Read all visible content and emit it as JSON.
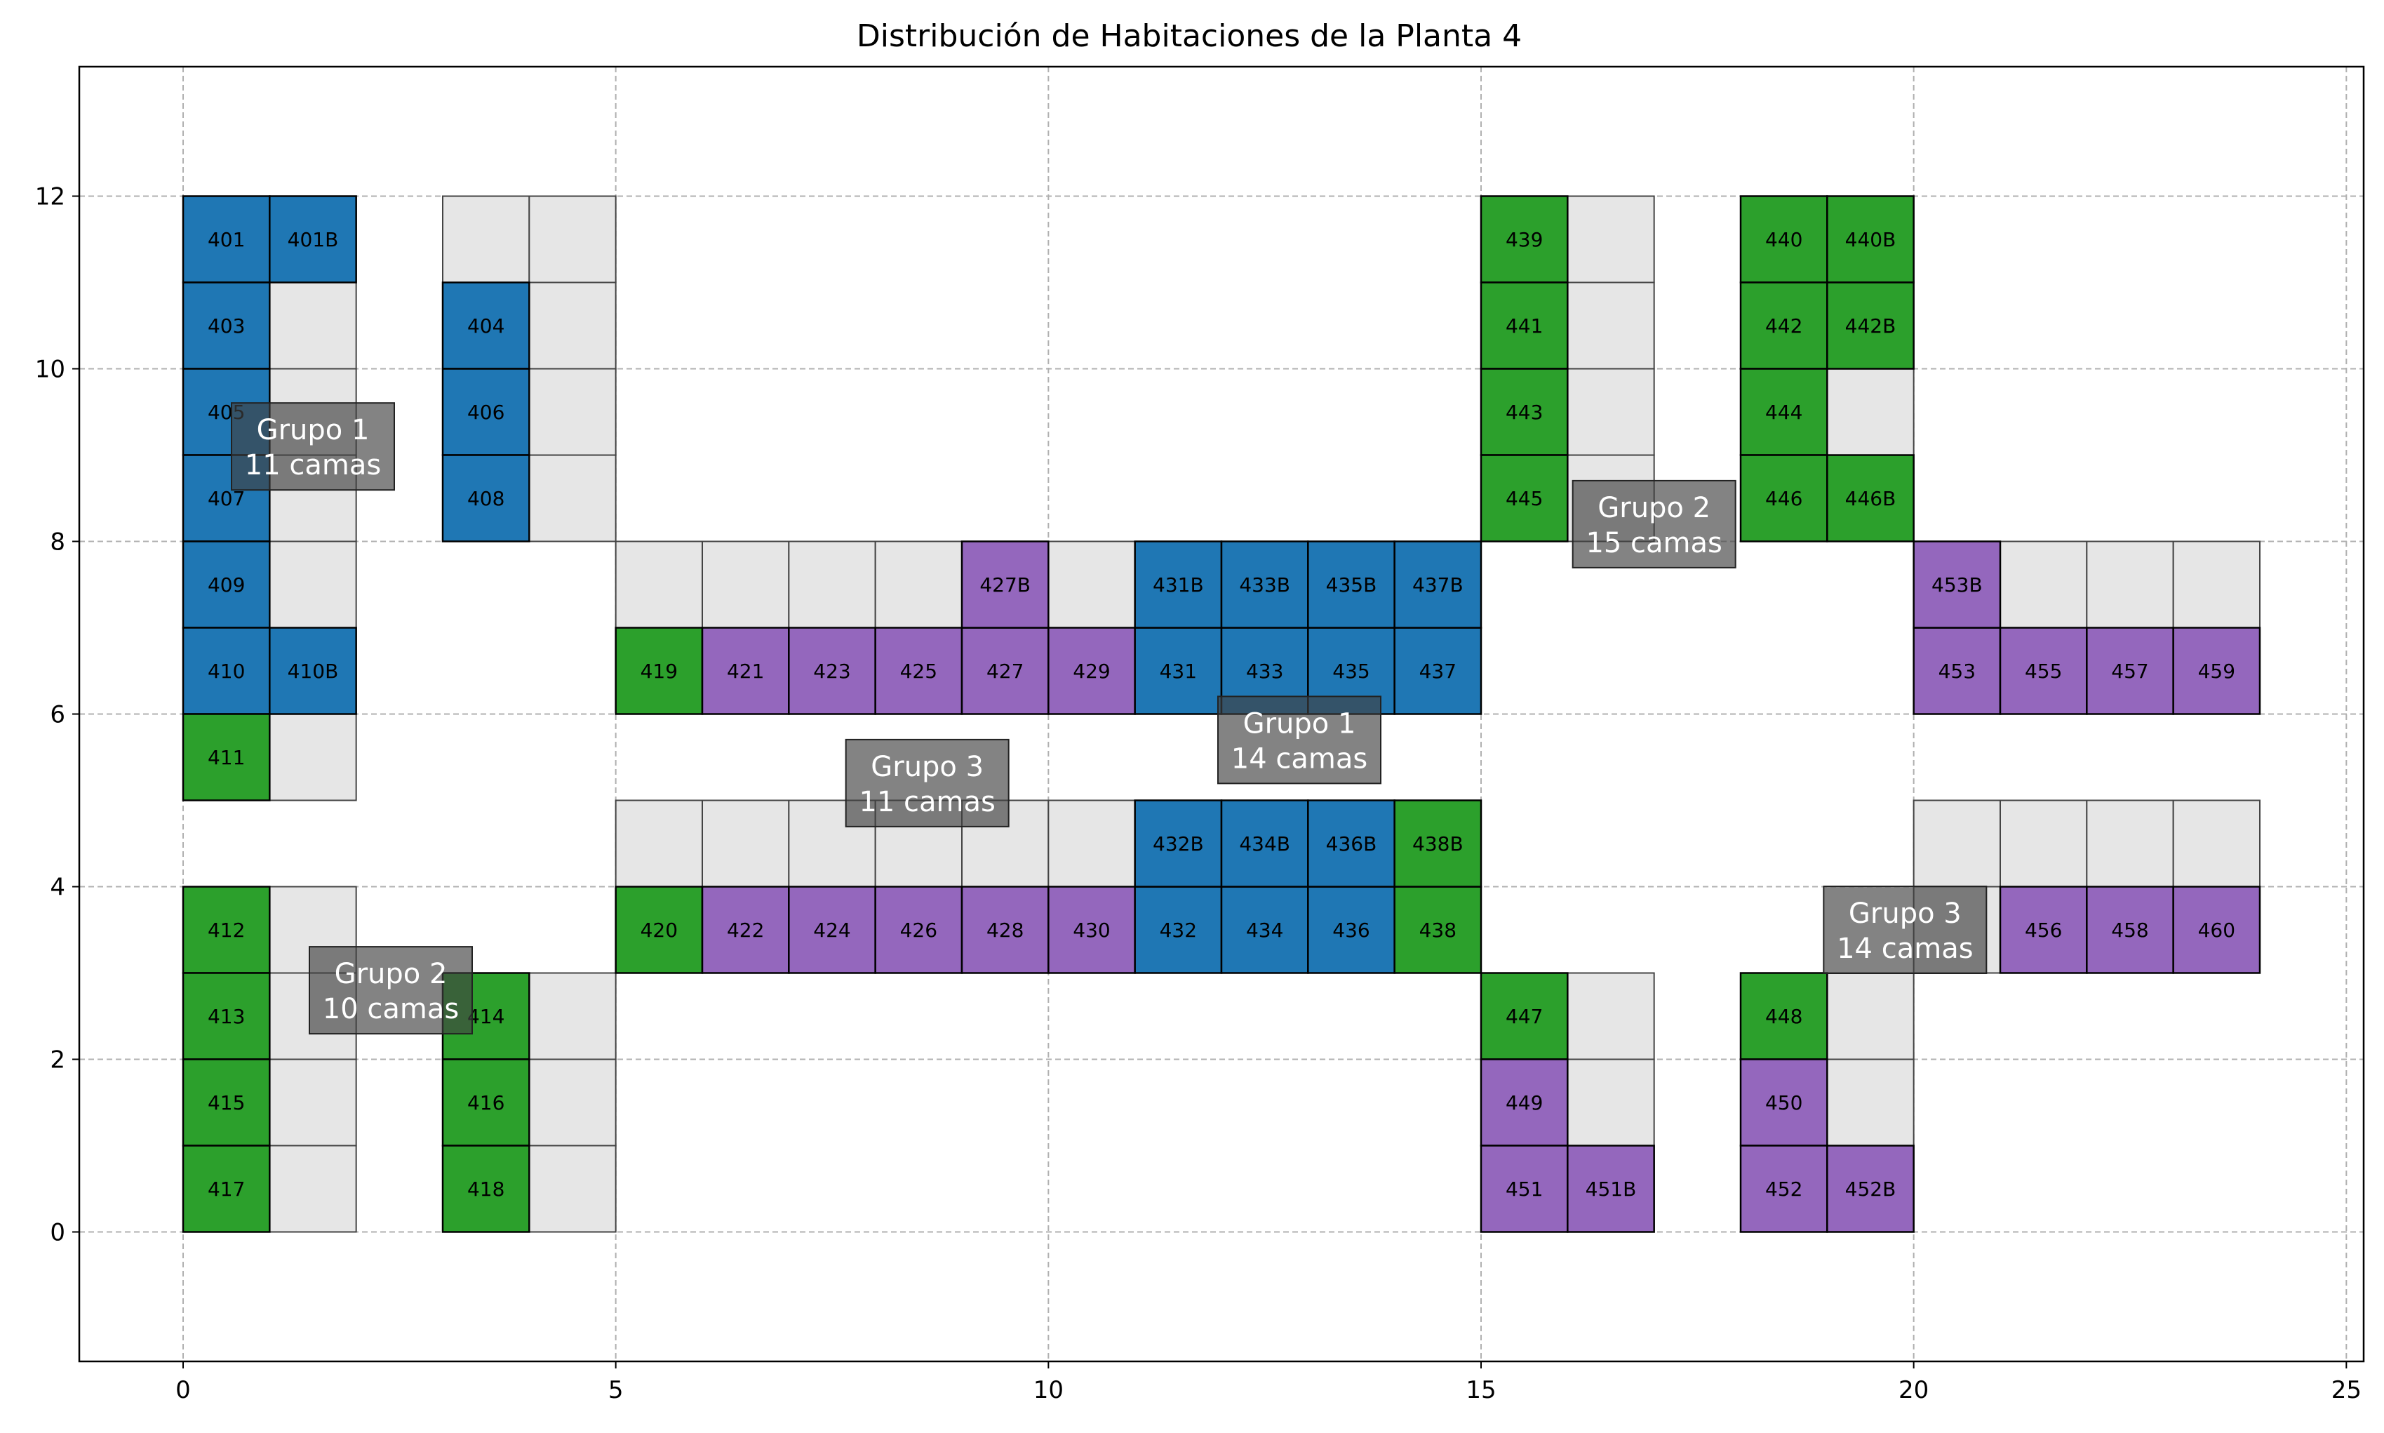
{
  "chart_data": {
    "type": "heatmap",
    "title": "Distribución de Habitaciones de la Planta 4",
    "xlabel": "",
    "ylabel": "",
    "xlim": [
      -1.2,
      25.2
    ],
    "ylim": [
      -1.5,
      13.5
    ],
    "xticks": [
      0,
      5,
      10,
      15,
      20,
      25
    ],
    "yticks": [
      0,
      2,
      4,
      6,
      8,
      10,
      12
    ],
    "grid": true,
    "colors": {
      "Grupo 1": "#1f77b4",
      "Grupo 2": "#2ca02c",
      "Grupo 3": "#9467bd",
      "empty": "#e6e6e6"
    },
    "rooms": [
      {
        "label": "401",
        "x": 0,
        "y": 11,
        "group": "Grupo 1"
      },
      {
        "label": "401B",
        "x": 1,
        "y": 11,
        "group": "Grupo 1"
      },
      {
        "label": "403",
        "x": 0,
        "y": 10,
        "group": "Grupo 1"
      },
      {
        "label": "405",
        "x": 0,
        "y": 9,
        "group": "Grupo 1"
      },
      {
        "label": "407",
        "x": 0,
        "y": 8,
        "group": "Grupo 1"
      },
      {
        "label": "409",
        "x": 0,
        "y": 7,
        "group": "Grupo 1"
      },
      {
        "label": "410",
        "x": 0,
        "y": 6,
        "group": "Grupo 1"
      },
      {
        "label": "410B",
        "x": 1,
        "y": 6,
        "group": "Grupo 1"
      },
      {
        "label": "404",
        "x": 3,
        "y": 10,
        "group": "Grupo 1"
      },
      {
        "label": "406",
        "x": 3,
        "y": 9,
        "group": "Grupo 1"
      },
      {
        "label": "408",
        "x": 3,
        "y": 8,
        "group": "Grupo 1"
      },
      {
        "label": "411",
        "x": 0,
        "y": 5,
        "group": "Grupo 2"
      },
      {
        "label": "412",
        "x": 0,
        "y": 3,
        "group": "Grupo 2"
      },
      {
        "label": "413",
        "x": 0,
        "y": 2,
        "group": "Grupo 2"
      },
      {
        "label": "415",
        "x": 0,
        "y": 1,
        "group": "Grupo 2"
      },
      {
        "label": "417",
        "x": 0,
        "y": 0,
        "group": "Grupo 2"
      },
      {
        "label": "414",
        "x": 3,
        "y": 2,
        "group": "Grupo 2"
      },
      {
        "label": "416",
        "x": 3,
        "y": 1,
        "group": "Grupo 2"
      },
      {
        "label": "418",
        "x": 3,
        "y": 0,
        "group": "Grupo 2"
      },
      {
        "label": "419",
        "x": 5,
        "y": 6,
        "group": "Grupo 2"
      },
      {
        "label": "421",
        "x": 6,
        "y": 6,
        "group": "Grupo 3"
      },
      {
        "label": "423",
        "x": 7,
        "y": 6,
        "group": "Grupo 3"
      },
      {
        "label": "425",
        "x": 8,
        "y": 6,
        "group": "Grupo 3"
      },
      {
        "label": "427",
        "x": 9,
        "y": 6,
        "group": "Grupo 3"
      },
      {
        "label": "427B",
        "x": 9,
        "y": 7,
        "group": "Grupo 3"
      },
      {
        "label": "429",
        "x": 10,
        "y": 6,
        "group": "Grupo 3"
      },
      {
        "label": "431",
        "x": 11,
        "y": 6,
        "group": "Grupo 1"
      },
      {
        "label": "433",
        "x": 12,
        "y": 6,
        "group": "Grupo 1"
      },
      {
        "label": "435",
        "x": 13,
        "y": 6,
        "group": "Grupo 1"
      },
      {
        "label": "437",
        "x": 14,
        "y": 6,
        "group": "Grupo 1"
      },
      {
        "label": "431B",
        "x": 11,
        "y": 7,
        "group": "Grupo 1"
      },
      {
        "label": "433B",
        "x": 12,
        "y": 7,
        "group": "Grupo 1"
      },
      {
        "label": "435B",
        "x": 13,
        "y": 7,
        "group": "Grupo 1"
      },
      {
        "label": "437B",
        "x": 14,
        "y": 7,
        "group": "Grupo 1"
      },
      {
        "label": "420",
        "x": 5,
        "y": 3,
        "group": "Grupo 2"
      },
      {
        "label": "422",
        "x": 6,
        "y": 3,
        "group": "Grupo 3"
      },
      {
        "label": "424",
        "x": 7,
        "y": 3,
        "group": "Grupo 3"
      },
      {
        "label": "426",
        "x": 8,
        "y": 3,
        "group": "Grupo 3"
      },
      {
        "label": "428",
        "x": 9,
        "y": 3,
        "group": "Grupo 3"
      },
      {
        "label": "430",
        "x": 10,
        "y": 3,
        "group": "Grupo 3"
      },
      {
        "label": "432",
        "x": 11,
        "y": 3,
        "group": "Grupo 1"
      },
      {
        "label": "434",
        "x": 12,
        "y": 3,
        "group": "Grupo 1"
      },
      {
        "label": "436",
        "x": 13,
        "y": 3,
        "group": "Grupo 1"
      },
      {
        "label": "438",
        "x": 14,
        "y": 3,
        "group": "Grupo 2"
      },
      {
        "label": "432B",
        "x": 11,
        "y": 4,
        "group": "Grupo 1"
      },
      {
        "label": "434B",
        "x": 12,
        "y": 4,
        "group": "Grupo 1"
      },
      {
        "label": "436B",
        "x": 13,
        "y": 4,
        "group": "Grupo 1"
      },
      {
        "label": "438B",
        "x": 14,
        "y": 4,
        "group": "Grupo 2"
      },
      {
        "label": "439",
        "x": 15,
        "y": 11,
        "group": "Grupo 2"
      },
      {
        "label": "441",
        "x": 15,
        "y": 10,
        "group": "Grupo 2"
      },
      {
        "label": "443",
        "x": 15,
        "y": 9,
        "group": "Grupo 2"
      },
      {
        "label": "445",
        "x": 15,
        "y": 8,
        "group": "Grupo 2"
      },
      {
        "label": "440",
        "x": 18,
        "y": 11,
        "group": "Grupo 2"
      },
      {
        "label": "440B",
        "x": 19,
        "y": 11,
        "group": "Grupo 2"
      },
      {
        "label": "442",
        "x": 18,
        "y": 10,
        "group": "Grupo 2"
      },
      {
        "label": "442B",
        "x": 19,
        "y": 10,
        "group": "Grupo 2"
      },
      {
        "label": "444",
        "x": 18,
        "y": 9,
        "group": "Grupo 2"
      },
      {
        "label": "446",
        "x": 18,
        "y": 8,
        "group": "Grupo 2"
      },
      {
        "label": "446B",
        "x": 19,
        "y": 8,
        "group": "Grupo 2"
      },
      {
        "label": "447",
        "x": 15,
        "y": 2,
        "group": "Grupo 2"
      },
      {
        "label": "449",
        "x": 15,
        "y": 1,
        "group": "Grupo 3"
      },
      {
        "label": "451",
        "x": 15,
        "y": 0,
        "group": "Grupo 3"
      },
      {
        "label": "451B",
        "x": 16,
        "y": 0,
        "group": "Grupo 3"
      },
      {
        "label": "448",
        "x": 18,
        "y": 2,
        "group": "Grupo 2"
      },
      {
        "label": "450",
        "x": 18,
        "y": 1,
        "group": "Grupo 3"
      },
      {
        "label": "452",
        "x": 18,
        "y": 0,
        "group": "Grupo 3"
      },
      {
        "label": "452B",
        "x": 19,
        "y": 0,
        "group": "Grupo 3"
      },
      {
        "label": "453",
        "x": 20,
        "y": 6,
        "group": "Grupo 3"
      },
      {
        "label": "453B",
        "x": 20,
        "y": 7,
        "group": "Grupo 3"
      },
      {
        "label": "455",
        "x": 21,
        "y": 6,
        "group": "Grupo 3"
      },
      {
        "label": "457",
        "x": 22,
        "y": 6,
        "group": "Grupo 3"
      },
      {
        "label": "459",
        "x": 23,
        "y": 6,
        "group": "Grupo 3"
      },
      {
        "label": "456",
        "x": 21,
        "y": 3,
        "group": "Grupo 3"
      },
      {
        "label": "458",
        "x": 22,
        "y": 3,
        "group": "Grupo 3"
      },
      {
        "label": "460",
        "x": 23,
        "y": 3,
        "group": "Grupo 3"
      }
    ],
    "empty_cells": [
      [
        3,
        11
      ],
      [
        4,
        11
      ],
      [
        1,
        10
      ],
      [
        4,
        10
      ],
      [
        1,
        9
      ],
      [
        4,
        9
      ],
      [
        1,
        8
      ],
      [
        4,
        8
      ],
      [
        1,
        7
      ],
      [
        1,
        5
      ],
      [
        1,
        3
      ],
      [
        1,
        2
      ],
      [
        1,
        1
      ],
      [
        1,
        0
      ],
      [
        4,
        2
      ],
      [
        4,
        1
      ],
      [
        4,
        0
      ],
      [
        5,
        7
      ],
      [
        6,
        7
      ],
      [
        7,
        7
      ],
      [
        8,
        7
      ],
      [
        10,
        7
      ],
      [
        5,
        4
      ],
      [
        6,
        4
      ],
      [
        7,
        4
      ],
      [
        8,
        4
      ],
      [
        9,
        4
      ],
      [
        10,
        4
      ],
      [
        16,
        11
      ],
      [
        16,
        10
      ],
      [
        16,
        9
      ],
      [
        16,
        8
      ],
      [
        19,
        9
      ],
      [
        16,
        2
      ],
      [
        16,
        1
      ],
      [
        19,
        2
      ],
      [
        19,
        1
      ],
      [
        21,
        7
      ],
      [
        22,
        7
      ],
      [
        23,
        7
      ],
      [
        20,
        4
      ],
      [
        21,
        4
      ],
      [
        22,
        4
      ],
      [
        23,
        4
      ],
      [
        20,
        3
      ]
    ],
    "annotations": [
      {
        "line1": "Grupo 1",
        "line2": "11 camas",
        "x": 1.5,
        "y": 9.1
      },
      {
        "line1": "Grupo 2",
        "line2": "15 camas",
        "x": 17.0,
        "y": 8.2
      },
      {
        "line1": "Grupo 1",
        "line2": "14 camas",
        "x": 12.9,
        "y": 5.7
      },
      {
        "line1": "Grupo 3",
        "line2": "11 camas",
        "x": 8.6,
        "y": 5.2
      },
      {
        "line1": "Grupo 2",
        "line2": "10 camas",
        "x": 2.4,
        "y": 2.8
      },
      {
        "line1": "Grupo 3",
        "line2": "14 camas",
        "x": 19.9,
        "y": 3.5
      }
    ]
  }
}
